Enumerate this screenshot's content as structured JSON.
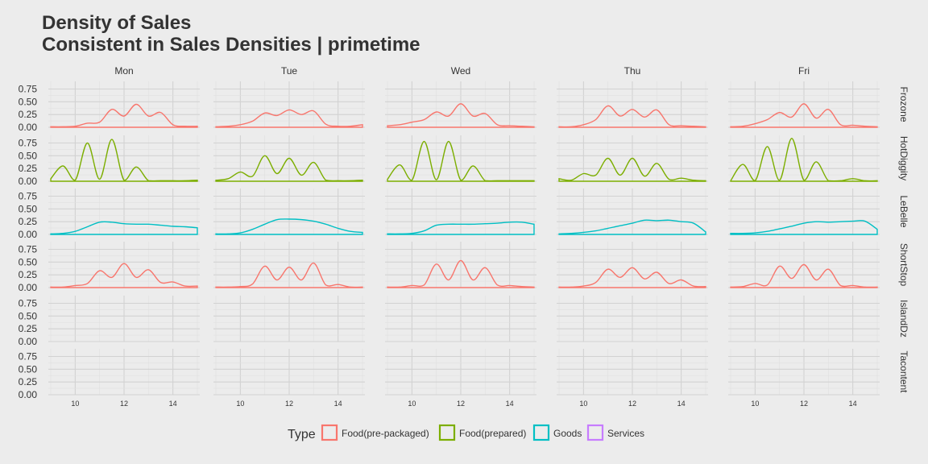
{
  "title": "Density of Sales",
  "subtitle": "Consistent in Sales Densities | primetime",
  "chart_data": {
    "type": "area",
    "x_range": [
      8.9,
      15.1
    ],
    "x_ticks": [
      10,
      12,
      14
    ],
    "y_range": [
      0,
      0.9
    ],
    "y_ticks": [
      0.0,
      0.25,
      0.5,
      0.75
    ],
    "y_tick_labels": [
      "0.00",
      "0.25",
      "0.50",
      "0.75"
    ],
    "grid": true,
    "legend_position": "bottom",
    "columns": [
      "Mon",
      "Tue",
      "Wed",
      "Thu",
      "Fri"
    ],
    "rows": [
      {
        "name": "Frozone",
        "type": "Food(pre-packaged)"
      },
      {
        "name": "HotDiggity",
        "type": "Food(prepared)"
      },
      {
        "name": "LeBelle",
        "type": "Goods"
      },
      {
        "name": "ShortStop",
        "type": "Food(pre-packaged)"
      },
      {
        "name": "IslandDz",
        "type": "Services"
      },
      {
        "name": "Tacontent",
        "type": "Food(prepared)"
      }
    ],
    "legend": {
      "title": "Type",
      "items": [
        {
          "label": "Food(pre-packaged)",
          "color": "#F8766D"
        },
        {
          "label": "Food(prepared)",
          "color": "#7CAE00"
        },
        {
          "label": "Goods",
          "color": "#00BFC4"
        },
        {
          "label": "Services",
          "color": "#C77CFF"
        }
      ]
    },
    "panels": {
      "Frozone": {
        "x": [
          9,
          15
        ],
        "Mon": [
          0.01,
          0.01,
          0.02,
          0.08,
          0.1,
          0.35,
          0.22,
          0.45,
          0.22,
          0.29,
          0.05,
          0.02,
          0.02
        ],
        "Tue": [
          0.01,
          0.02,
          0.05,
          0.12,
          0.28,
          0.23,
          0.34,
          0.25,
          0.32,
          0.06,
          0.02,
          0.02,
          0.05
        ],
        "Wed": [
          0.03,
          0.05,
          0.1,
          0.15,
          0.3,
          0.22,
          0.46,
          0.22,
          0.27,
          0.05,
          0.03,
          0.02,
          0.01
        ],
        "Thu": [
          0.01,
          0.01,
          0.05,
          0.15,
          0.42,
          0.22,
          0.35,
          0.2,
          0.34,
          0.05,
          0.03,
          0.02,
          0.01
        ],
        "Fri": [
          0.01,
          0.02,
          0.07,
          0.15,
          0.29,
          0.2,
          0.46,
          0.18,
          0.35,
          0.05,
          0.04,
          0.02,
          0.01
        ]
      },
      "HotDiggity": {
        "x": [
          9,
          15
        ],
        "Mon": [
          0.05,
          0.3,
          0.02,
          0.75,
          0.04,
          0.82,
          0.02,
          0.28,
          0.01,
          0.01,
          0.01,
          0.01,
          0.02
        ],
        "Tue": [
          0.02,
          0.05,
          0.18,
          0.1,
          0.5,
          0.15,
          0.45,
          0.12,
          0.37,
          0.02,
          0.01,
          0.01,
          0.02
        ],
        "Wed": [
          0.04,
          0.32,
          0.02,
          0.78,
          0.03,
          0.78,
          0.02,
          0.3,
          0.01,
          0.01,
          0.01,
          0.01,
          0.01
        ],
        "Thu": [
          0.05,
          0.02,
          0.15,
          0.12,
          0.45,
          0.12,
          0.45,
          0.1,
          0.35,
          0.04,
          0.06,
          0.02,
          0.01
        ],
        "Fri": [
          0.01,
          0.33,
          0.01,
          0.68,
          0.02,
          0.84,
          0.02,
          0.38,
          0.01,
          0.01,
          0.05,
          0.01,
          0.01
        ]
      },
      "LeBelle": {
        "x": [
          9,
          15
        ],
        "Mon": [
          0.01,
          0.02,
          0.06,
          0.15,
          0.24,
          0.24,
          0.21,
          0.2,
          0.2,
          0.18,
          0.16,
          0.15,
          0.13
        ],
        "Tue": [
          0.01,
          0.01,
          0.03,
          0.1,
          0.2,
          0.29,
          0.3,
          0.29,
          0.26,
          0.2,
          0.12,
          0.06,
          0.04
        ],
        "Wed": [
          0.01,
          0.01,
          0.02,
          0.07,
          0.18,
          0.2,
          0.2,
          0.2,
          0.21,
          0.22,
          0.24,
          0.24,
          0.2
        ],
        "Thu": [
          0.01,
          0.02,
          0.04,
          0.07,
          0.12,
          0.17,
          0.22,
          0.28,
          0.27,
          0.28,
          0.25,
          0.22,
          0.05
        ],
        "Fri": [
          0.02,
          0.02,
          0.03,
          0.06,
          0.11,
          0.16,
          0.22,
          0.25,
          0.24,
          0.25,
          0.26,
          0.26,
          0.1
        ]
      },
      "ShortStop": {
        "x": [
          9,
          15
        ],
        "Mon": [
          0.01,
          0.01,
          0.04,
          0.08,
          0.33,
          0.2,
          0.47,
          0.2,
          0.35,
          0.1,
          0.11,
          0.03,
          0.03
        ],
        "Tue": [
          0.01,
          0.01,
          0.02,
          0.07,
          0.42,
          0.15,
          0.4,
          0.15,
          0.48,
          0.05,
          0.06,
          0.01,
          0.01
        ],
        "Wed": [
          0.01,
          0.01,
          0.04,
          0.05,
          0.46,
          0.15,
          0.53,
          0.15,
          0.39,
          0.05,
          0.04,
          0.02,
          0.01
        ],
        "Thu": [
          0.01,
          0.01,
          0.03,
          0.1,
          0.36,
          0.2,
          0.39,
          0.17,
          0.3,
          0.08,
          0.15,
          0.03,
          0.02
        ],
        "Fri": [
          0.01,
          0.02,
          0.08,
          0.05,
          0.42,
          0.18,
          0.45,
          0.15,
          0.36,
          0.04,
          0.04,
          0.01,
          0.01
        ]
      }
    }
  }
}
